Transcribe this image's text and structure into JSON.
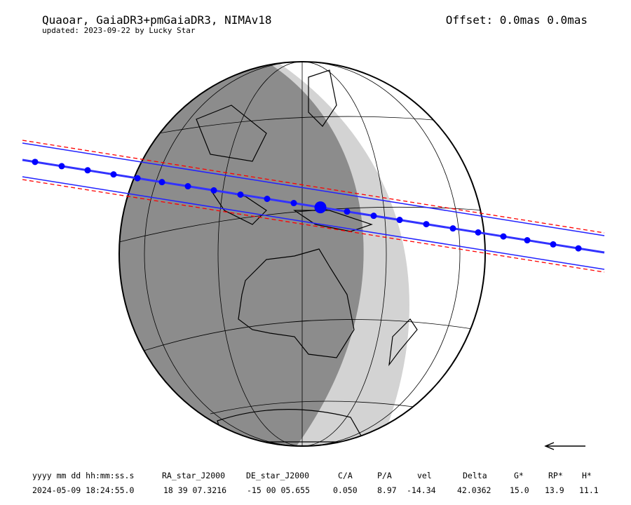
{
  "header": {
    "title": "Quaoar, GaiaDR3+pmGaiaDR3, NIMAv18",
    "subtitle": "updated: 2023-09-22 by Lucky Star",
    "offset": "Offset: 0.0mas 0.0mas"
  },
  "table": {
    "headers": [
      "yyyy mm dd hh:mm:ss.s",
      "RA_star_J2000",
      "DE_star_J2000",
      "C/A",
      "P/A",
      "vel",
      "Delta",
      "G*",
      "RP*",
      "H*"
    ],
    "row": [
      "2024-05-09 18:24:55.0",
      "18 39 07.3216",
      "-15 00 05.655",
      "0.050",
      "8.97",
      "-14.34",
      "42.0362",
      "15.0",
      "13.9",
      "11.1"
    ]
  }
}
